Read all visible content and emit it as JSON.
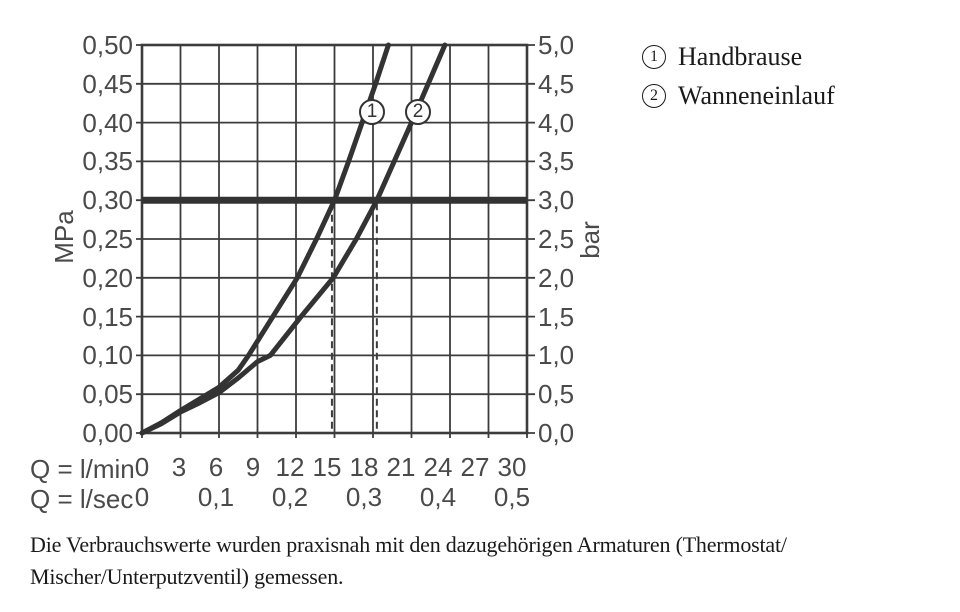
{
  "chart_data": {
    "type": "line",
    "title": "",
    "x_axis": {
      "row1_label": "Q = l/min",
      "row1_ticks": [
        "0",
        "3",
        "6",
        "9",
        "12",
        "15",
        "18",
        "21",
        "24",
        "27",
        "30"
      ],
      "row2_label": "Q = l/sec",
      "row2_ticks": [
        "0",
        "0,1",
        "0,2",
        "0,3",
        "0,4",
        "0,5"
      ],
      "range_l_min": [
        0,
        30
      ]
    },
    "y_axis_left": {
      "unit": "MPa",
      "ticks": [
        "0,50",
        "0,45",
        "0,40",
        "0,35",
        "0,30",
        "0,25",
        "0,20",
        "0,15",
        "0,10",
        "0,05",
        "0,00"
      ],
      "range_mpa": [
        0,
        0.5
      ]
    },
    "y_axis_right": {
      "unit": "bar",
      "ticks": [
        "5,0",
        "4,5",
        "4,0",
        "3,5",
        "3,0",
        "2,5",
        "2,0",
        "1,5",
        "1,0",
        "0,5",
        "0,0"
      ],
      "range_bar": [
        0,
        5
      ]
    },
    "grid": true,
    "reference_line": {
      "mpa": 0.3,
      "bar": 3.0
    },
    "dashed_guides_l_min": [
      14.8,
      18.3
    ],
    "series": [
      {
        "id": "1",
        "name": "Handbrause",
        "points": [
          [
            0,
            0
          ],
          [
            1.5,
            0.013
          ],
          [
            3,
            0.029
          ],
          [
            4.5,
            0.044
          ],
          [
            6,
            0.059
          ],
          [
            7.5,
            0.081
          ],
          [
            8.3,
            0.1
          ],
          [
            10.2,
            0.15
          ],
          [
            12.1,
            0.2
          ],
          [
            13.6,
            0.25
          ],
          [
            15.0,
            0.3
          ],
          [
            16.1,
            0.35
          ],
          [
            17.15,
            0.4
          ],
          [
            18.2,
            0.45
          ],
          [
            19.2,
            0.5
          ]
        ],
        "marker_at": {
          "l_min": 17.9,
          "mpa": 0.414
        }
      },
      {
        "id": "2",
        "name": "Wanneneinlauf",
        "points": [
          [
            0,
            0
          ],
          [
            1.5,
            0.012
          ],
          [
            3,
            0.027
          ],
          [
            4.5,
            0.039
          ],
          [
            6,
            0.052
          ],
          [
            7.5,
            0.071
          ],
          [
            9,
            0.092
          ],
          [
            10,
            0.1
          ],
          [
            12.4,
            0.15
          ],
          [
            14.9,
            0.2
          ],
          [
            16.7,
            0.25
          ],
          [
            18.3,
            0.3
          ],
          [
            19.65,
            0.35
          ],
          [
            21.0,
            0.4
          ],
          [
            22.3,
            0.45
          ],
          [
            23.6,
            0.5
          ]
        ],
        "marker_at": {
          "l_min": 21.5,
          "mpa": 0.414
        }
      }
    ],
    "colors": {
      "grid_line": "#3c3c3c",
      "curve": "#333333",
      "reference_line": "#333333",
      "axis_label": "#4a4a4a",
      "text": "#1a1a1a"
    }
  },
  "legend": {
    "items": [
      {
        "symbol": "1",
        "label": "Handbrause"
      },
      {
        "symbol": "2",
        "label": "Wanneneinlauf"
      }
    ]
  },
  "caption": {
    "line1": "Die Verbrauchswerte wurden praxisnah mit den dazugehörigen Armaturen (Thermostat/",
    "line2": "Mischer/Unterputzventil) gemessen."
  }
}
